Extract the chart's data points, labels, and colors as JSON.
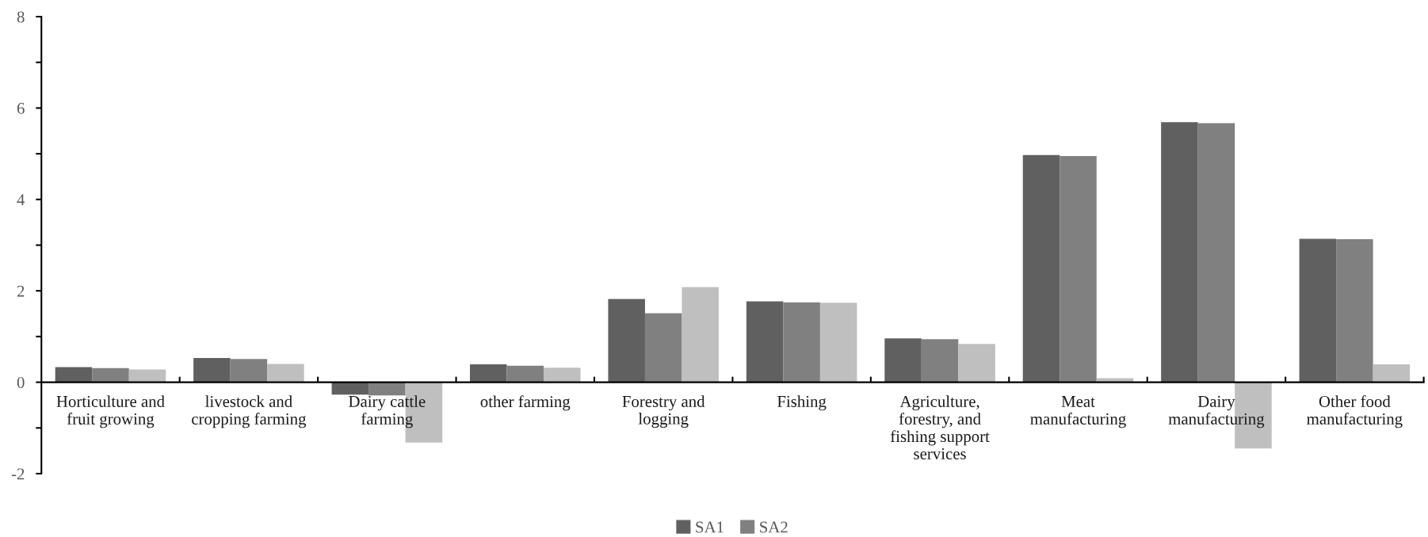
{
  "chart_data": {
    "type": "bar",
    "categories": [
      "Horticulture and\nfruit growing",
      "livestock and\ncropping farming",
      "Dairy cattle\nfarming",
      "other farming",
      "Forestry and\nlogging",
      "Fishing",
      "Agriculture,\nforestry, and\nfishing support\nservices",
      "Meat\nmanufacturing",
      "Dairy\nmanufacturing",
      "Other food\nmanufacturing"
    ],
    "series": [
      {
        "name": "SA1",
        "color": "#606060",
        "values": [
          0.33,
          0.53,
          -0.27,
          0.39,
          1.82,
          1.77,
          0.96,
          4.97,
          5.69,
          3.14
        ]
      },
      {
        "name": "SA2",
        "color": "#808080",
        "values": [
          0.31,
          0.51,
          -0.29,
          0.36,
          1.51,
          1.75,
          0.94,
          4.95,
          5.67,
          3.13
        ]
      },
      {
        "color": "#bfbfbf",
        "values": [
          0.28,
          0.4,
          -1.32,
          0.32,
          2.08,
          1.74,
          0.84,
          0.09,
          -1.45,
          0.39
        ]
      }
    ],
    "ylim": [
      -2,
      8
    ],
    "yticks": [
      -2,
      {
        "value": -1,
        "label": null
      },
      0,
      {
        "value": 1,
        "label": null
      },
      2,
      {
        "value": 3,
        "label": null
      },
      4,
      {
        "value": 5,
        "label": null
      },
      6,
      {
        "value": 7,
        "label": null
      },
      8
    ],
    "grid": false,
    "legend": "bottom"
  }
}
